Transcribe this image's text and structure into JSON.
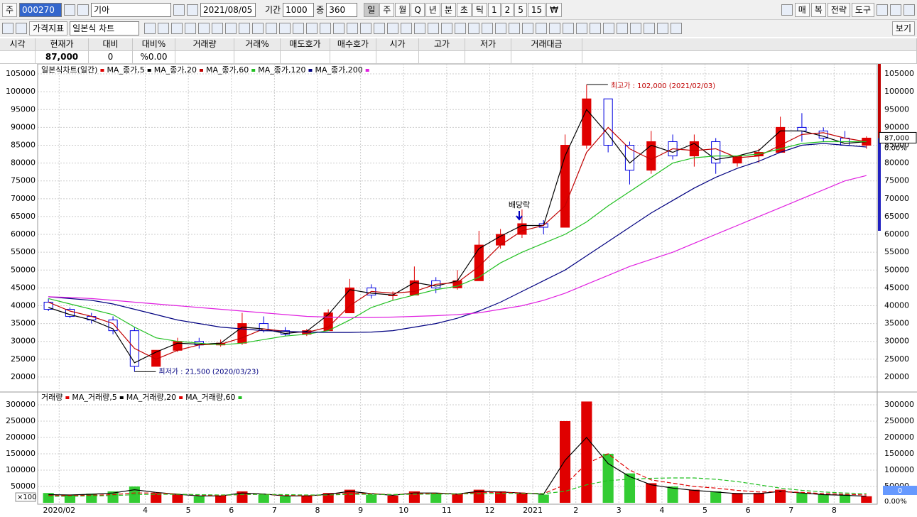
{
  "toolbar": {
    "market": "주",
    "code": "000270",
    "name": "기아",
    "date": "2021/08/05",
    "period_label": "기간",
    "period": "1000",
    "zoom_label": "중",
    "zoom": "360",
    "intervals": [
      "일",
      "주",
      "월",
      "Q",
      "년",
      "분",
      "초",
      "틱",
      "1",
      "2",
      "5",
      "15",
      "₩"
    ],
    "right_buttons": [
      "매",
      "복",
      "전략",
      "도구"
    ],
    "indicator": "가격지표",
    "chart_style": "일본식 차트",
    "view": "보기"
  },
  "quote_table": {
    "headers": [
      "시각",
      "현재가",
      "대비",
      "대비%",
      "거래량",
      "거래%",
      "매도호가",
      "매수호가",
      "시가",
      "고가",
      "저가",
      "거래대금"
    ],
    "price": "87,000",
    "change": "0",
    "change_pct": "%0.00"
  },
  "chart_data": [
    {
      "type": "candlestick",
      "title": "일본식차트(일간)",
      "up_color": "#e00000",
      "down_color": "#0000e0",
      "open": [
        41000,
        39000,
        37000,
        36000,
        33000,
        23000,
        27500,
        30000,
        29000,
        29500,
        35000,
        33000,
        32000,
        33000,
        38000,
        45000,
        43000,
        43000,
        47000,
        45000,
        47000,
        57000,
        60000,
        63000,
        62000,
        85000,
        98000,
        85000,
        78000,
        86000,
        82000,
        86000,
        80000,
        82000,
        83000,
        90000,
        89000,
        87000,
        85000
      ],
      "high": [
        42000,
        39500,
        38000,
        37000,
        34000,
        27500,
        31000,
        31000,
        30500,
        38000,
        37000,
        34000,
        33500,
        39000,
        47500,
        46000,
        44000,
        51000,
        48000,
        50000,
        61000,
        61500,
        67000,
        64000,
        88000,
        102000,
        98000,
        86000,
        89000,
        88000,
        88000,
        87000,
        82000,
        84000,
        93000,
        94000,
        90000,
        89000,
        87500
      ],
      "low": [
        38500,
        36500,
        35000,
        32000,
        21500,
        23000,
        27000,
        28000,
        28500,
        29000,
        32500,
        31500,
        31500,
        33000,
        38000,
        42000,
        41500,
        43000,
        43500,
        44500,
        47000,
        56000,
        59000,
        60000,
        62000,
        84000,
        83000,
        74000,
        77000,
        81000,
        79000,
        77000,
        79000,
        80000,
        83000,
        86000,
        86000,
        85000,
        84000
      ],
      "close": [
        39000,
        37000,
        36000,
        33000,
        23000,
        27500,
        30000,
        29000,
        29500,
        35000,
        33000,
        32000,
        33000,
        38000,
        45000,
        43000,
        43000,
        47000,
        45000,
        47000,
        57000,
        60000,
        63000,
        62000,
        85000,
        98000,
        85000,
        78000,
        86000,
        82000,
        86000,
        80000,
        82000,
        83000,
        90000,
        89000,
        87000,
        85000,
        87000
      ],
      "series": [
        {
          "name": "MA_종가,5",
          "color": "#000000",
          "values": [
            39500,
            37500,
            36000,
            33500,
            24000,
            27000,
            29500,
            29200,
            29500,
            34000,
            33500,
            32200,
            32800,
            37500,
            44500,
            43500,
            43000,
            46500,
            45500,
            47000,
            56000,
            59500,
            62500,
            62500,
            82000,
            95000,
            88000,
            80000,
            85000,
            83000,
            85500,
            81000,
            82000,
            83500,
            89000,
            89000,
            87500,
            85500,
            86000
          ]
        },
        {
          "name": "MA_종가,20",
          "color": "#c00000",
          "values": [
            41000,
            38500,
            37000,
            35000,
            28000,
            25000,
            27500,
            29000,
            29200,
            31000,
            33500,
            32800,
            32500,
            34000,
            40000,
            44000,
            43500,
            44000,
            46000,
            46500,
            51000,
            57000,
            61000,
            62500,
            68000,
            83000,
            90000,
            84000,
            81000,
            84000,
            83500,
            84000,
            81500,
            82000,
            85000,
            88000,
            88500,
            87000,
            86000
          ]
        },
        {
          "name": "MA_종가,60",
          "color": "#22c022",
          "values": [
            42000,
            40500,
            39000,
            37500,
            34000,
            31000,
            30000,
            29500,
            29000,
            29500,
            30500,
            31500,
            32000,
            33000,
            36000,
            39500,
            41500,
            43000,
            44500,
            45500,
            48000,
            52000,
            55000,
            57500,
            60000,
            63500,
            68000,
            72000,
            76000,
            80000,
            81500,
            82000,
            82000,
            82500,
            84000,
            85500,
            86000,
            86000,
            86000
          ]
        },
        {
          "name": "MA_종가,120",
          "color": "#000080",
          "values": [
            42500,
            42000,
            41500,
            40500,
            39000,
            37500,
            36000,
            35000,
            34000,
            33500,
            33000,
            32800,
            32600,
            32500,
            32500,
            32600,
            33000,
            34000,
            35000,
            36500,
            38500,
            41000,
            44000,
            47000,
            50000,
            54000,
            58000,
            62000,
            66000,
            69500,
            73000,
            76000,
            78500,
            80500,
            83000,
            85000,
            85500,
            85000,
            84500
          ]
        },
        {
          "name": "MA_종가,200",
          "color": "#e020e0",
          "values": [
            42500,
            42300,
            42000,
            41500,
            41000,
            40500,
            40000,
            39500,
            39000,
            38500,
            38000,
            37500,
            37000,
            36800,
            36700,
            36700,
            36800,
            37000,
            37200,
            37500,
            38000,
            39000,
            40000,
            41500,
            43500,
            46000,
            48500,
            51000,
            53000,
            55000,
            57500,
            60000,
            62500,
            65000,
            67500,
            70000,
            72500,
            75000,
            76500
          ]
        }
      ],
      "ylim": [
        16200,
        107600
      ],
      "yticks": [
        20000,
        25000,
        30000,
        35000,
        40000,
        45000,
        50000,
        55000,
        60000,
        65000,
        70000,
        75000,
        80000,
        85000,
        90000,
        95000,
        100000,
        105000
      ],
      "grid": true,
      "high_annotation": "최고가 : 102,000 (2021/02/03)",
      "low_annotation": "최저가 : 21,500 (2020/03/23)",
      "event_annotation": "배당락",
      "last_price": 87000,
      "last_price_label": "87,000",
      "last_pct_label": "0.00%"
    },
    {
      "type": "bar",
      "title": "거래량",
      "categories": [
        null,
        "2020/02",
        null,
        null,
        null,
        "4",
        null,
        "5",
        null,
        "6",
        null,
        "7",
        null,
        "8",
        null,
        "9",
        null,
        "10",
        null,
        "11",
        null,
        "12",
        null,
        "2021",
        null,
        "2",
        null,
        "3",
        null,
        "4",
        null,
        "5",
        null,
        "6",
        null,
        "7",
        null,
        "8",
        null
      ],
      "values": [
        30000,
        25000,
        28000,
        35000,
        50000,
        30000,
        25000,
        20000,
        22000,
        35000,
        25000,
        20000,
        22000,
        30000,
        40000,
        25000,
        22000,
        35000,
        30000,
        28000,
        40000,
        35000,
        30000,
        25000,
        250000,
        310000,
        150000,
        90000,
        60000,
        50000,
        40000,
        35000,
        30000,
        30000,
        40000,
        30000,
        25000,
        25000,
        20000
      ],
      "up_color": "#e00000",
      "down_color": "#33cc33",
      "series": [
        {
          "name": "MA_거래량,5",
          "color": "#000000",
          "line_style": "solid",
          "values": [
            25000,
            24000,
            26000,
            30000,
            40000,
            32000,
            26000,
            21000,
            21000,
            30000,
            27000,
            21000,
            21000,
            26000,
            35000,
            28000,
            23000,
            30000,
            30000,
            27000,
            35000,
            33000,
            30000,
            26000,
            130000,
            200000,
            120000,
            80000,
            55000,
            45000,
            38000,
            33000,
            28000,
            28000,
            35000,
            30000,
            25000,
            23000,
            20000
          ]
        },
        {
          "name": "MA_거래량,20",
          "color": "#e00000",
          "line_style": "dashed",
          "values": [
            22000,
            22000,
            23000,
            25000,
            30000,
            30000,
            27000,
            24000,
            22000,
            26000,
            26000,
            23000,
            22000,
            24000,
            30000,
            28000,
            25000,
            28000,
            29000,
            27000,
            32000,
            32000,
            30000,
            28000,
            55000,
            120000,
            150000,
            100000,
            70000,
            60000,
            50000,
            45000,
            38000,
            33000,
            34000,
            32000,
            28000,
            26000,
            24000
          ]
        },
        {
          "name": "MA_거래량,60",
          "color": "#22c022",
          "line_style": "dashed",
          "values": [
            20000,
            20000,
            21000,
            22000,
            25000,
            26000,
            26000,
            25000,
            24000,
            25000,
            26000,
            25000,
            24000,
            24000,
            26000,
            26000,
            25000,
            26000,
            27000,
            27000,
            28000,
            29000,
            29000,
            28000,
            35000,
            55000,
            68000,
            72000,
            75000,
            76000,
            76000,
            72000,
            65000,
            55000,
            45000,
            38000,
            33000,
            30000,
            28000
          ]
        }
      ],
      "ylim": [
        0,
        332600
      ],
      "yticks": [
        50000,
        100000,
        150000,
        200000,
        250000,
        300000
      ],
      "grid": true,
      "unit_label": "×100",
      "last_volume": 0,
      "last_volume_label": "0",
      "last_pct_label": "0.00%"
    }
  ]
}
